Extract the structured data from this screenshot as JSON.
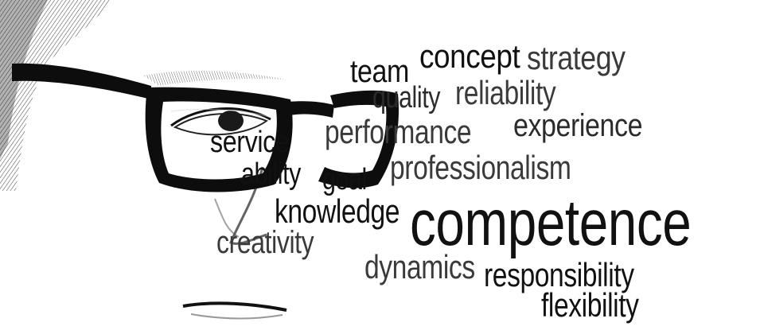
{
  "words": {
    "team": "team",
    "concept": "concept",
    "strategy": "strategy",
    "quality": "quality",
    "reliability": "reliability",
    "service": "service",
    "performance": "performance",
    "experience": "experience",
    "ability": "ability",
    "goal": "goal",
    "professionalism": "professionalism",
    "knowledge": "knowledge",
    "competence": "competence",
    "creativity": "creativity",
    "dynamics": "dynamics",
    "responsibility": "responsibility",
    "flexibility": "flexibility"
  },
  "colors": {
    "ink": "#111111",
    "ink_mid": "#2b2b2b",
    "ink_soft": "#3a3a3a",
    "background": "#ffffff"
  }
}
